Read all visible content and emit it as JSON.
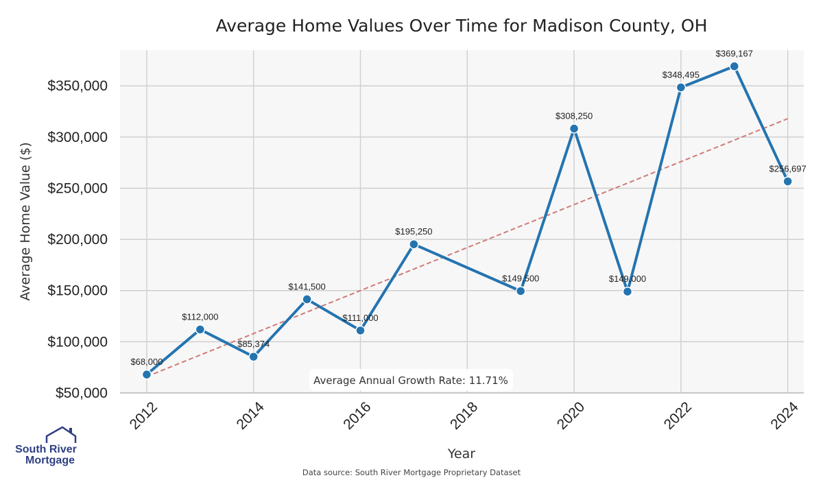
{
  "chart_data": {
    "type": "line",
    "title": "Average Home Values Over Time for Madison County, OH",
    "xlabel": "Year",
    "ylabel": "Average Home Value ($)",
    "x": [
      2012,
      2013,
      2014,
      2015,
      2016,
      2017,
      2019,
      2020,
      2021,
      2022,
      2023,
      2024
    ],
    "series": [
      {
        "values": [
          68000,
          112000,
          85374,
          141500,
          111000,
          195250,
          149500,
          308250,
          149000,
          348495,
          369167,
          256697
        ],
        "labels": [
          "$68,000",
          "$112,000",
          "$85,374",
          "$141,500",
          "$111,000",
          "$195,250",
          "$149,500",
          "$308,250",
          "$149,000",
          "$348,495",
          "$369,167",
          "$256,697"
        ],
        "color": "#2474b0"
      }
    ],
    "trendline": {
      "start": [
        2012,
        66000
      ],
      "end": [
        2024,
        318000
      ],
      "color": "#d07a78",
      "style": "dashed"
    },
    "xlim": [
      2011.5,
      2024.3
    ],
    "ylim": [
      50000,
      385000
    ],
    "xticks": [
      2012,
      2014,
      2016,
      2018,
      2020,
      2022,
      2024
    ],
    "xtick_labels": [
      "2012",
      "2014",
      "2016",
      "2018",
      "2020",
      "2022",
      "2024"
    ],
    "yticks": [
      50000,
      100000,
      150000,
      200000,
      250000,
      300000,
      350000
    ],
    "ytick_labels": [
      "$50,000",
      "$100,000",
      "$150,000",
      "$200,000",
      "$250,000",
      "$300,000",
      "$350,000"
    ],
    "grid": true,
    "background_color": "#f7f7f7",
    "annotation": "Average Annual Growth Rate: 11.71%",
    "source": "Data source: South River Mortgage Proprietary Dataset"
  },
  "logo": {
    "line1": "South River",
    "line2": "Mortgage",
    "color": "#2f3f84"
  }
}
